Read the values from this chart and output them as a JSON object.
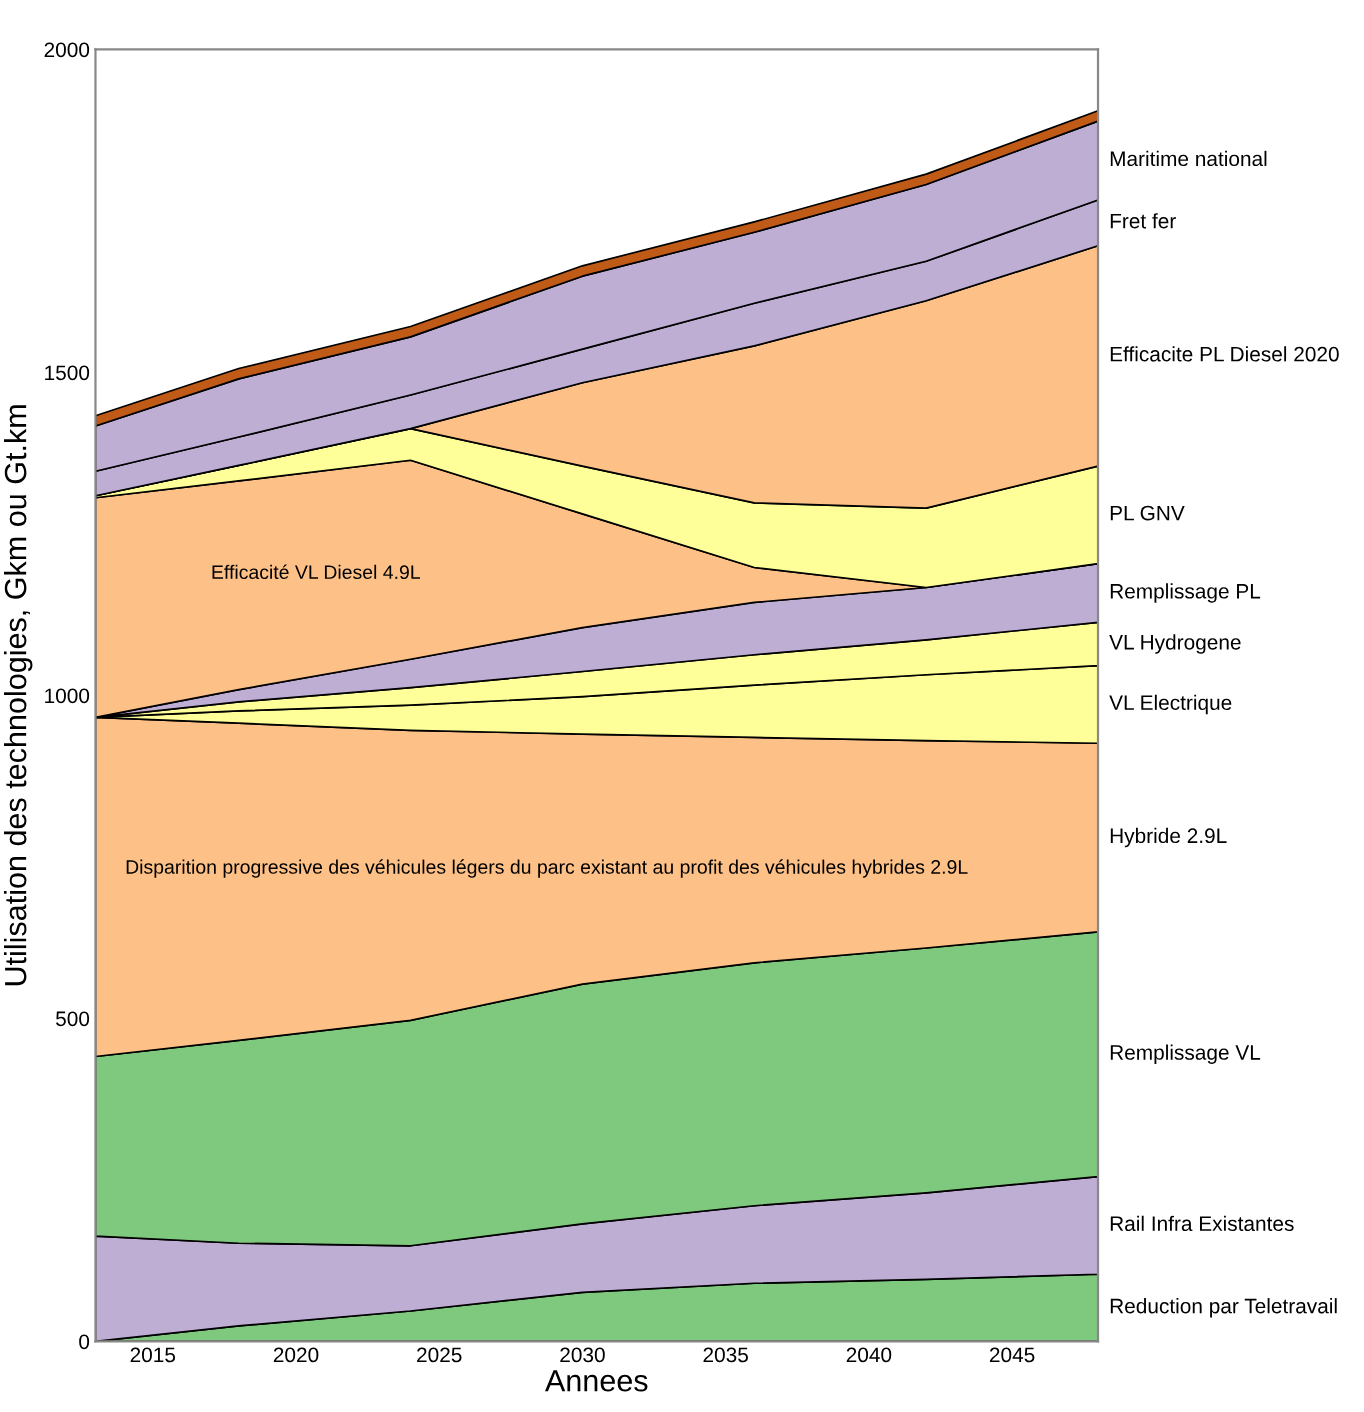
{
  "chart_data": {
    "type": "area",
    "stacked": true,
    "xlabel": "Annees",
    "ylabel": "Utilisation des technologies, Gkm ou Gt.km",
    "x": [
      2013,
      2018,
      2024,
      2030,
      2036,
      2042,
      2048
    ],
    "xlim": [
      2013,
      2048
    ],
    "xticks": [
      2015,
      2020,
      2025,
      2030,
      2035,
      2040,
      2045
    ],
    "ylim": [
      0,
      2000
    ],
    "yticks": [
      0,
      500,
      1000,
      1500,
      2000
    ],
    "grid": false,
    "legend": false,
    "series": [
      {
        "name": "Reduction par Teletravail",
        "color": "#7fc97f",
        "values": [
          0,
          24,
          47,
          76,
          90,
          96,
          104
        ]
      },
      {
        "name": "Rail Infra Existantes",
        "color": "#beaed4",
        "values": [
          163,
          128,
          101,
          106,
          120,
          134,
          151
        ]
      },
      {
        "name": "Remplissage VL",
        "color": "#7fc97f",
        "values": [
          278,
          314,
          349,
          371,
          376,
          379,
          379
        ]
      },
      {
        "name": "Hybride 2.9L",
        "color": "#fdc086",
        "values": [
          525,
          491,
          449,
          387,
          349,
          321,
          292
        ]
      },
      {
        "name": "VL Electrique",
        "color": "#ffff99",
        "values": [
          0,
          19,
          39,
          58,
          81,
          102,
          120
        ]
      },
      {
        "name": "VL Hydrogene",
        "color": "#ffff99",
        "values": [
          0,
          14,
          27,
          39,
          47,
          54,
          67
        ]
      },
      {
        "name": "Remplissage PL",
        "color": "#beaed4",
        "values": [
          0,
          19,
          44,
          68,
          81,
          81,
          91
        ]
      },
      {
        "name": "Efficacité VL Diesel 4.9L",
        "color": "#fdc086",
        "values": [
          340,
          323,
          308,
          176,
          54,
          0,
          0
        ]
      },
      {
        "name": "PL GNV",
        "color": "#ffff99",
        "values": [
          3,
          24,
          49,
          74,
          100,
          123,
          151
        ]
      },
      {
        "name": "Efficacite PL Diesel 2020",
        "color": "#fdc086",
        "values": [
          0,
          0,
          0,
          129,
          243,
          321,
          341
        ]
      },
      {
        "name": "Fret fer",
        "color": "#beaed4",
        "values": [
          38,
          44,
          52,
          52,
          66,
          61,
          71
        ]
      },
      {
        "name": "Maritime national",
        "color": "#beaed4",
        "values": [
          70,
          90,
          90,
          113,
          110,
          119,
          122
        ]
      },
      {
        "color": "#bf5b17",
        "values": [
          16,
          16,
          16,
          16,
          16,
          16,
          16
        ]
      }
    ],
    "annotations": [
      "Disparition progressive des véhicules légers du parc existant au profit des véhicules hybrides 2.9L"
    ]
  }
}
